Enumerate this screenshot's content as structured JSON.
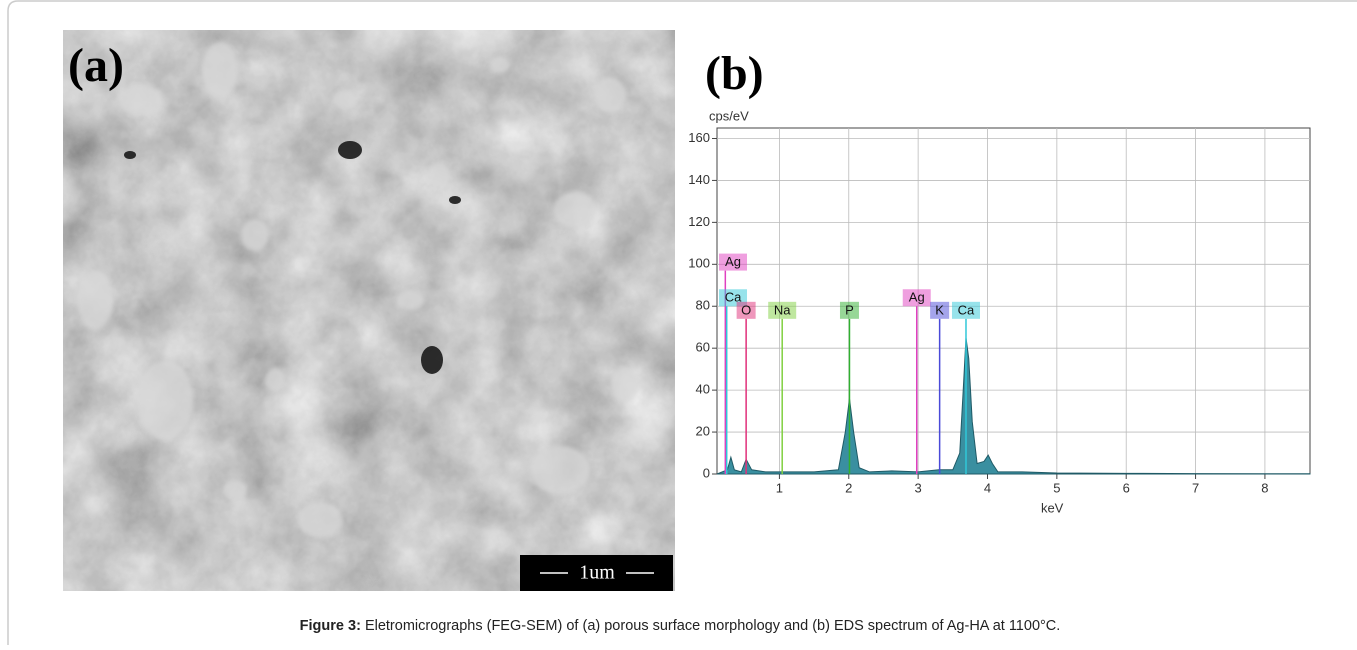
{
  "figure": {
    "panel_a_label": "(a)",
    "scale_bar": "1um",
    "panel_b_label": "(b)",
    "caption_label": "Figure 3:",
    "caption_text": "Eletromicrographs (FEG-SEM) of (a) porous surface morphology and (b) EDS spectrum of Ag-HA at 1100°C."
  },
  "chart_data": {
    "type": "area",
    "x_label": "keV",
    "y_label": "cps/eV",
    "x": [
      0.1,
      0.25,
      0.3,
      0.35,
      0.45,
      0.52,
      0.6,
      0.8,
      1.04,
      1.5,
      1.85,
      1.95,
      2.01,
      2.07,
      2.15,
      2.3,
      2.62,
      3.0,
      3.3,
      3.5,
      3.6,
      3.65,
      3.69,
      3.73,
      3.78,
      3.85,
      3.95,
      4.01,
      4.07,
      4.15,
      4.5,
      5,
      6,
      7,
      8,
      8.65
    ],
    "values": [
      0,
      2,
      8,
      2,
      1,
      7,
      2,
      1,
      1,
      1,
      2,
      20,
      36,
      20,
      3,
      1,
      1.5,
      1,
      2,
      2,
      10,
      40,
      65,
      55,
      25,
      5,
      6,
      9,
      5,
      1,
      1,
      0.5,
      0.3,
      0.2,
      0.1,
      0.1
    ],
    "color": "#3a8fa0",
    "xlim": [
      0.1,
      8.65
    ],
    "ylim": [
      0,
      165
    ],
    "xticks": [
      1,
      2,
      3,
      4,
      5,
      6,
      7,
      8
    ],
    "yticks": [
      0,
      20,
      40,
      60,
      80,
      100,
      120,
      140,
      160
    ],
    "grid": true,
    "markers": [
      {
        "label": "Ag",
        "x": 0.22,
        "y": 97,
        "color": "#e040c0"
      },
      {
        "label": "Ca",
        "x": 0.24,
        "y": 80,
        "color": "#30c8d8"
      },
      {
        "label": "O",
        "x": 0.52,
        "y": 74,
        "color": "#e0307a"
      },
      {
        "label": "Na",
        "x": 1.04,
        "y": 74,
        "color": "#80d040"
      },
      {
        "label": "P",
        "x": 2.01,
        "y": 74,
        "color": "#30b030"
      },
      {
        "label": "Ag",
        "x": 2.98,
        "y": 80,
        "color": "#e040c0"
      },
      {
        "label": "K",
        "x": 3.31,
        "y": 74,
        "color": "#4a4ad8"
      },
      {
        "label": "Ca",
        "x": 3.69,
        "y": 74,
        "color": "#30c8d8"
      }
    ]
  }
}
